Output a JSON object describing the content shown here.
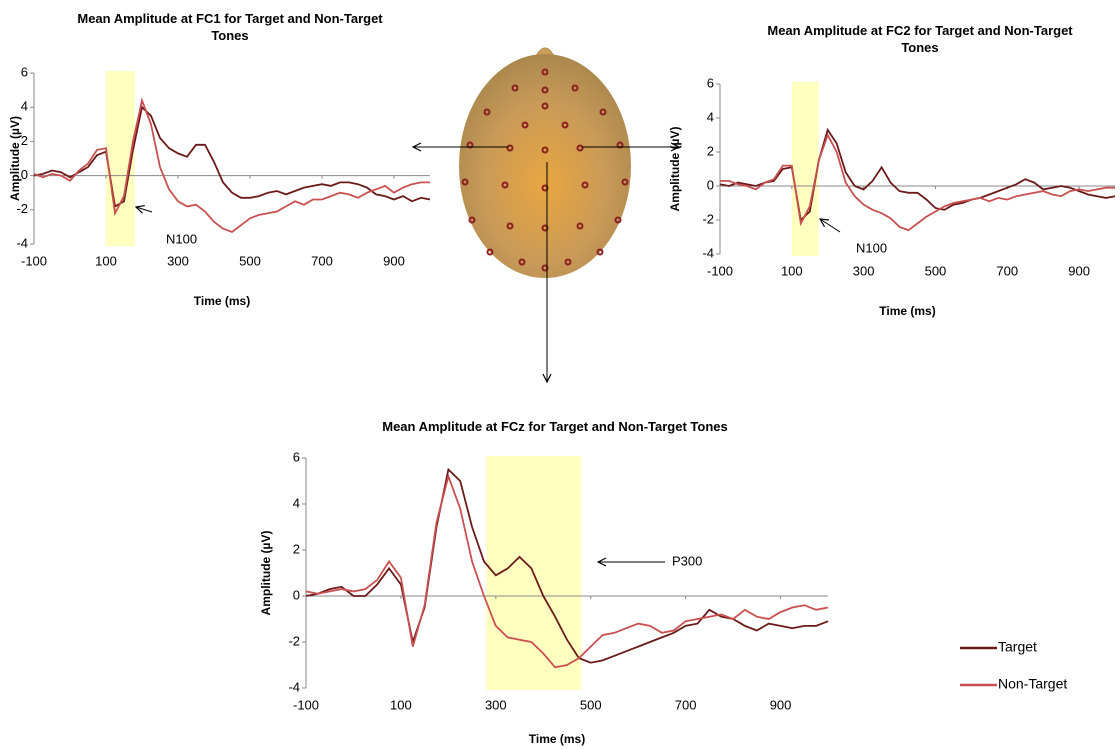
{
  "chart_data": [
    {
      "type": "line",
      "title": "Mean Amplitude at FC1 for Target and Non-Target Tones",
      "x_label": "Time (ms)",
      "y_label": "Amplitude (µV)",
      "annotation": "N100",
      "highlight": [
        100,
        180
      ],
      "xlim": [
        -100,
        1000
      ],
      "xticks": [
        -100,
        100,
        300,
        500,
        700,
        900
      ],
      "ylim": [
        -4,
        6
      ],
      "yticks": [
        -4,
        -2,
        0,
        2,
        4,
        6
      ],
      "x": [
        -100,
        -75,
        -50,
        -25,
        0,
        25,
        50,
        75,
        100,
        125,
        150,
        175,
        200,
        225,
        250,
        275,
        300,
        325,
        350,
        375,
        400,
        425,
        450,
        475,
        500,
        525,
        550,
        575,
        600,
        625,
        650,
        675,
        700,
        725,
        750,
        775,
        800,
        825,
        850,
        875,
        900,
        925,
        950,
        975,
        1000
      ],
      "series": [
        {
          "color": "#6b1a1a",
          "values": [
            0,
            0.1,
            0.3,
            0.2,
            -0.1,
            0.2,
            0.5,
            1.2,
            1.4,
            -1.8,
            -1.5,
            1.5,
            4.0,
            3.5,
            2.2,
            1.6,
            1.3,
            1.1,
            1.8,
            1.8,
            0.8,
            -0.4,
            -1.0,
            -1.3,
            -1.3,
            -1.2,
            -1.0,
            -0.9,
            -1.1,
            -0.9,
            -0.7,
            -0.6,
            -0.5,
            -0.6,
            -0.4,
            -0.4,
            -0.5,
            -0.7,
            -1.1,
            -1.2,
            -1.4,
            -1.2,
            -1.5,
            -1.3,
            -1.4
          ]
        },
        {
          "color": "#c85050",
          "values": [
            0.1,
            -0.1,
            0.1,
            0,
            -0.3,
            0.3,
            0.7,
            1.5,
            1.6,
            -2.2,
            -1.2,
            2.0,
            4.4,
            3.0,
            0.5,
            -0.8,
            -1.5,
            -1.8,
            -1.7,
            -2.1,
            -2.7,
            -3.1,
            -3.3,
            -2.9,
            -2.5,
            -2.3,
            -2.2,
            -2.1,
            -1.8,
            -1.5,
            -1.7,
            -1.4,
            -1.4,
            -1.2,
            -1.0,
            -1.1,
            -1.3,
            -1.0,
            -0.8,
            -0.6,
            -1.0,
            -0.7,
            -0.5,
            -0.4,
            -0.4
          ]
        }
      ]
    },
    {
      "type": "line",
      "title": "Mean Amplitude at FC2 for Target and Non-Target Tones",
      "x_label": "Time (ms)",
      "y_label": "Amplitude (µV)",
      "annotation": "N100",
      "highlight": [
        100,
        175
      ],
      "xlim": [
        -100,
        1000
      ],
      "xticks": [
        -100,
        100,
        300,
        500,
        700,
        900
      ],
      "ylim": [
        -4,
        6
      ],
      "yticks": [
        -4,
        -2,
        0,
        2,
        4,
        6
      ],
      "x": [
        -100,
        -75,
        -50,
        -25,
        0,
        25,
        50,
        75,
        100,
        125,
        150,
        175,
        200,
        225,
        250,
        275,
        300,
        325,
        350,
        375,
        400,
        425,
        450,
        475,
        500,
        525,
        550,
        575,
        600,
        625,
        650,
        675,
        700,
        725,
        750,
        775,
        800,
        825,
        850,
        875,
        900,
        925,
        950,
        975,
        1000
      ],
      "series": [
        {
          "color": "#6b1a1a",
          "values": [
            0.1,
            0,
            0.2,
            0.1,
            0,
            0.2,
            0.3,
            1.0,
            1.1,
            -2.0,
            -1.5,
            1.5,
            3.3,
            2.5,
            0.8,
            0,
            -0.2,
            0.3,
            1.1,
            0.2,
            -0.3,
            -0.4,
            -0.4,
            -0.8,
            -1.3,
            -1.4,
            -1.1,
            -1.0,
            -0.8,
            -0.7,
            -0.5,
            -0.3,
            -0.1,
            0.1,
            0.4,
            0.2,
            -0.2,
            -0.1,
            0,
            -0.1,
            -0.3,
            -0.5,
            -0.6,
            -0.7,
            -0.6
          ]
        },
        {
          "color": "#c85050",
          "values": [
            0.3,
            0.3,
            0.1,
            0,
            -0.2,
            0.2,
            0.4,
            1.2,
            1.2,
            -2.2,
            -1.2,
            1.5,
            3.0,
            2.0,
            0.2,
            -0.6,
            -1.1,
            -1.4,
            -1.6,
            -1.9,
            -2.4,
            -2.6,
            -2.2,
            -1.8,
            -1.5,
            -1.2,
            -1.0,
            -0.9,
            -0.8,
            -0.7,
            -0.9,
            -0.7,
            -0.8,
            -0.6,
            -0.5,
            -0.4,
            -0.3,
            -0.5,
            -0.6,
            -0.3,
            -0.2,
            -0.3,
            -0.2,
            -0.1,
            -0.1
          ]
        }
      ]
    },
    {
      "type": "line",
      "title": "Mean Amplitude at FCz for Target and Non-Target Tones",
      "x_label": "Time (ms)",
      "y_label": "Amplitude (µV)",
      "annotation": "P300",
      "highlight": [
        280,
        480
      ],
      "xlim": [
        -100,
        1000
      ],
      "xticks": [
        -100,
        100,
        300,
        500,
        700,
        900
      ],
      "ylim": [
        -4,
        6
      ],
      "yticks": [
        -4,
        -2,
        0,
        2,
        4,
        6
      ],
      "x": [
        -100,
        -75,
        -50,
        -25,
        0,
        25,
        50,
        75,
        100,
        125,
        150,
        175,
        200,
        225,
        250,
        275,
        300,
        325,
        350,
        375,
        400,
        425,
        450,
        475,
        500,
        525,
        550,
        575,
        600,
        625,
        650,
        675,
        700,
        725,
        750,
        775,
        800,
        825,
        850,
        875,
        900,
        925,
        950,
        975,
        1000
      ],
      "series": [
        {
          "name": "Target",
          "color": "#6b1a1a",
          "values": [
            0,
            0.1,
            0.3,
            0.4,
            0,
            0,
            0.5,
            1.2,
            0.5,
            -2.0,
            -0.5,
            3.0,
            5.5,
            5.0,
            3.0,
            1.5,
            0.9,
            1.2,
            1.7,
            1.2,
            0,
            -0.9,
            -1.9,
            -2.7,
            -2.9,
            -2.8,
            -2.6,
            -2.4,
            -2.2,
            -2.0,
            -1.8,
            -1.6,
            -1.3,
            -1.2,
            -0.6,
            -0.9,
            -1.0,
            -1.3,
            -1.5,
            -1.2,
            -1.3,
            -1.4,
            -1.3,
            -1.3,
            -1.1
          ]
        },
        {
          "name": "Non-Target",
          "color": "#c85050",
          "values": [
            0.2,
            0.1,
            0.2,
            0.3,
            0.2,
            0.3,
            0.7,
            1.5,
            0.8,
            -2.2,
            -0.4,
            3.2,
            5.2,
            3.8,
            1.5,
            0,
            -1.3,
            -1.8,
            -1.9,
            -2.0,
            -2.5,
            -3.1,
            -3.0,
            -2.7,
            -2.2,
            -1.7,
            -1.6,
            -1.4,
            -1.2,
            -1.3,
            -1.6,
            -1.5,
            -1.1,
            -1.0,
            -0.9,
            -0.8,
            -1.0,
            -0.6,
            -0.9,
            -1.0,
            -0.7,
            -0.5,
            -0.4,
            -0.6,
            -0.5
          ]
        }
      ]
    }
  ]
}
